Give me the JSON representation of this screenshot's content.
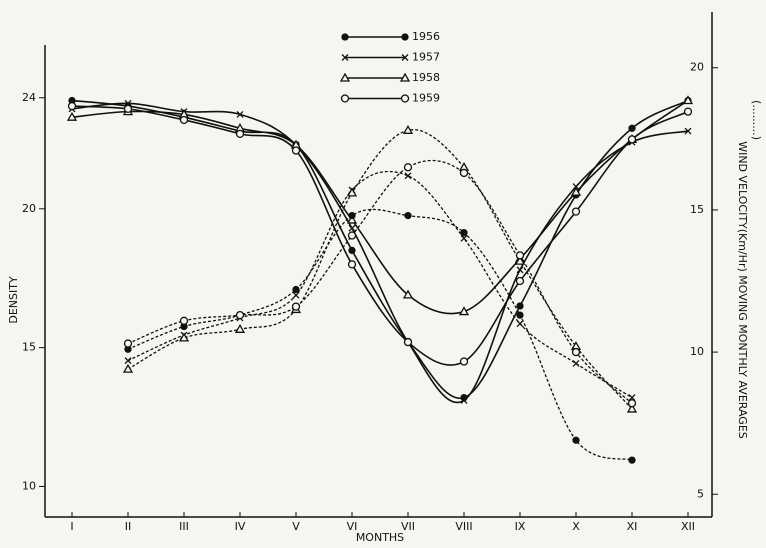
{
  "chart_data": {
    "type": "line",
    "ylabel": "DENSITY",
    "xlabel": "MONTHS",
    "y2label": "WIND VELOCITY(Km/Hr) MOVING MONTHLY AVERAGES",
    "y2label_note": "(.........)",
    "categories": [
      "I",
      "II",
      "III",
      "IV",
      "V",
      "VI",
      "VII",
      "VIII",
      "IX",
      "X",
      "XI",
      "XII"
    ],
    "ylim": [
      8.9,
      25.9
    ],
    "yticks": [
      10,
      15,
      20,
      24
    ],
    "y2lim": [
      4.2,
      20.8
    ],
    "y2ticks": [
      5,
      10,
      15,
      20
    ],
    "series": [
      {
        "name": "1956",
        "color": "#111",
        "marker": "dot",
        "values": [
          23.9,
          23.7,
          23.3,
          22.8,
          22.3,
          18.5,
          15.2,
          13.2,
          16.5,
          20.5,
          22.9,
          23.9
        ]
      },
      {
        "name": "1957",
        "color": "#111",
        "marker": "cross",
        "values": [
          23.6,
          23.8,
          23.5,
          23.4,
          22.3,
          19.3,
          15.2,
          13.1,
          17.8,
          20.8,
          22.4,
          22.8
        ]
      },
      {
        "name": "1958",
        "color": "#111",
        "marker": "triangle",
        "values": [
          23.3,
          23.5,
          23.4,
          22.9,
          22.3,
          19.6,
          16.9,
          16.3,
          18.2,
          20.6,
          22.5,
          23.9
        ]
      },
      {
        "name": "1959",
        "color": "#111",
        "marker": "circle",
        "values": [
          23.7,
          23.6,
          23.2,
          22.7,
          22.1,
          18.0,
          15.2,
          14.5,
          17.4,
          19.9,
          22.5,
          23.5
        ]
      },
      {
        "name": "1956",
        "color": "#111",
        "marker": "dot",
        "axis": "y2",
        "dashed": true,
        "values": [
          null,
          10.1,
          10.9,
          11.3,
          12.2,
          14.8,
          14.8,
          14.2,
          11.3,
          6.9,
          6.2,
          null
        ]
      },
      {
        "name": "1957",
        "color": "#111",
        "marker": "cross",
        "axis": "y2",
        "dashed": true,
        "values": [
          null,
          9.7,
          10.6,
          11.2,
          12.0,
          15.7,
          16.2,
          14.0,
          11.0,
          9.6,
          8.4,
          null
        ]
      },
      {
        "name": "1958",
        "color": "#111",
        "marker": "triangle",
        "axis": "y2",
        "dashed": true,
        "values": [
          null,
          9.4,
          10.5,
          10.8,
          11.5,
          15.6,
          17.8,
          16.5,
          13.2,
          10.2,
          8.0,
          null
        ]
      },
      {
        "name": "1959",
        "color": "#111",
        "marker": "circle",
        "axis": "y2",
        "dashed": true,
        "values": [
          null,
          10.3,
          11.1,
          11.3,
          11.6,
          14.1,
          16.5,
          16.3,
          13.4,
          10.0,
          8.2,
          null
        ]
      }
    ]
  }
}
